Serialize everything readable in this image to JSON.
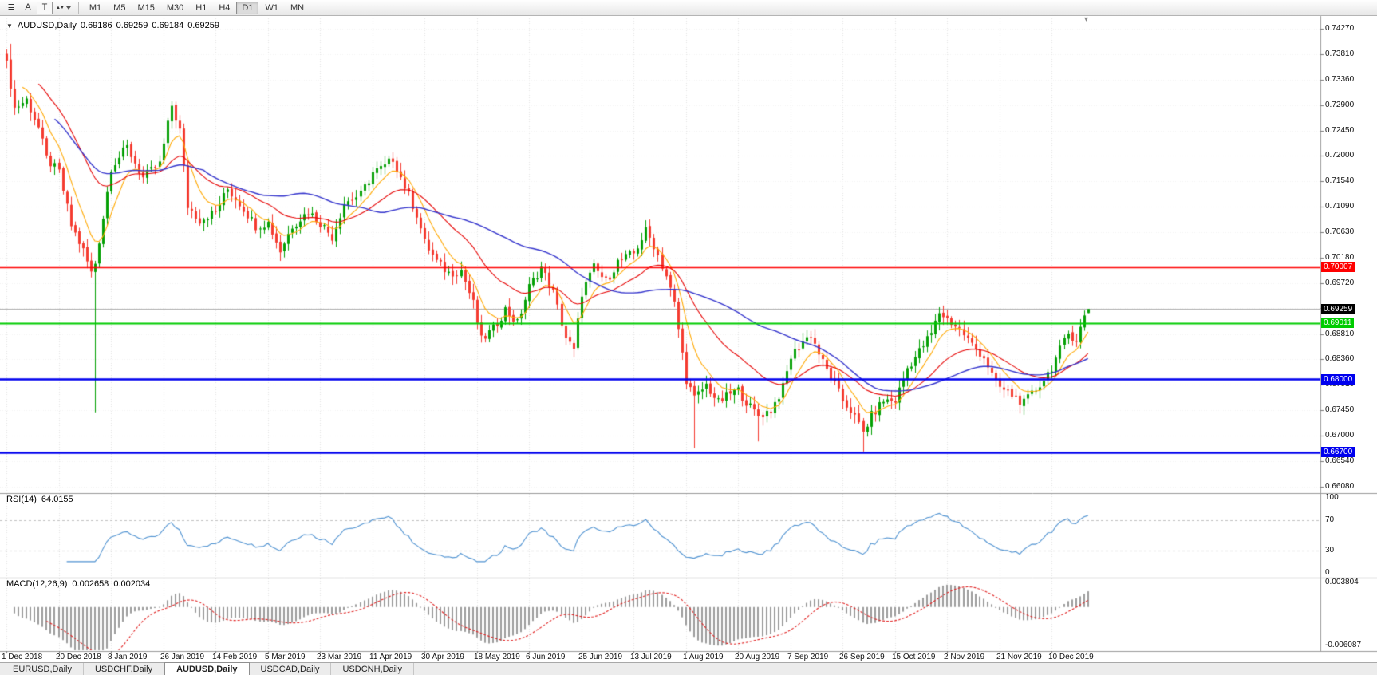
{
  "colors": {
    "bull": "#05A005",
    "bear": "#F43B30",
    "ma_fast_orange": "#FFA800",
    "ma_mid_red": "#E60000",
    "ma_slow_blue": "#3333CC",
    "rsi_line": "#4F92D1",
    "macd_hist": "#9C9C9C",
    "macd_signal": "#E02020",
    "hline_red": "#FF0000",
    "hline_green": "#00CC00",
    "hline_blue": "#0000EE",
    "bid_line": "#ACACAC",
    "bid_label_bg": "#000000",
    "grid_v": "#E3E3E3",
    "grid_h": "#F2F2F2",
    "rsi_levels_line": "#C0C0C0",
    "separator": "#9A9A9A"
  },
  "toolbar": {
    "tools": [
      {
        "name": "cursor-lines-icon",
        "glyph": "≣",
        "framed": false,
        "dropdown": false
      },
      {
        "name": "text-label-tool-icon",
        "glyph": "A",
        "framed": false,
        "dropdown": false
      },
      {
        "name": "text-box-tool-icon",
        "glyph": "T",
        "framed": true,
        "dropdown": false
      },
      {
        "name": "arrow-objects-dropdown-icon",
        "glyph": "▲▼",
        "framed": false,
        "dropdown": true
      }
    ],
    "timeframes": [
      "M1",
      "M5",
      "M15",
      "M30",
      "H1",
      "H4",
      "D1",
      "W1",
      "MN"
    ],
    "active_timeframe": "D1"
  },
  "chart": {
    "header": {
      "dropdown_icon": "▼",
      "symbol": "AUDUSD,Daily",
      "open": "0.69186",
      "high": "0.69259",
      "low": "0.69184",
      "close": "0.69259"
    },
    "shift_marker_icon": "▾",
    "scale": {
      "top": 0.7427,
      "bottom": 0.6608
    },
    "price_axis_labels": [
      "0.74270",
      "0.73810",
      "0.73360",
      "0.72900",
      "0.72450",
      "0.72000",
      "0.71540",
      "0.71090",
      "0.70630",
      "0.70180",
      "0.69720",
      "0.69270",
      "0.68810",
      "0.68360",
      "0.67910",
      "0.67450",
      "0.67000",
      "0.66540",
      "0.66080"
    ],
    "price_markers": [
      {
        "text": "0.70007",
        "price": 0.70007,
        "bg": "#FF0000"
      },
      {
        "text": "0.69259",
        "price": 0.69259,
        "bg": "#000000"
      },
      {
        "text": "0.69011",
        "price": 0.69011,
        "bg": "#00CC00"
      },
      {
        "text": "0.68000",
        "price": 0.68,
        "bg": "#0000EE"
      },
      {
        "text": "0.66700",
        "price": 0.667,
        "bg": "#0000EE"
      }
    ],
    "hlines": [
      {
        "price": 0.70007,
        "color": "#FF0000",
        "width": 1.4
      },
      {
        "price": 0.69011,
        "color": "#00CC00",
        "width": 2
      },
      {
        "price": 0.68,
        "color": "#0000EE",
        "width": 2.4
      },
      {
        "price": 0.667,
        "color": "#0000EE",
        "width": 2.4
      }
    ],
    "bid": {
      "price": 0.69259
    },
    "dates": [
      "1 Dec 2018",
      "20 Dec 2018",
      "8 Jan 2019",
      "26 Jan 2019",
      "14 Feb 2019",
      "5 Mar 2019",
      "23 Mar 2019",
      "11 Apr 2019",
      "30 Apr 2019",
      "18 May 2019",
      "6 Jun 2019",
      "25 Jun 2019",
      "13 Jul 2019",
      "1 Aug 2019",
      "20 Aug 2019",
      "7 Sep 2019",
      "26 Sep 2019",
      "15 Oct 2019",
      "2 Nov 2019",
      "21 Nov 2019",
      "10 Dec 2019"
    ],
    "candles_per_tick": 13
  },
  "chart_data": {
    "type": "candlestick",
    "symbol": "AUDUSD",
    "timeframe": "Daily",
    "title": "AUDUSD,Daily",
    "y_range": [
      0.6608,
      0.7427
    ],
    "x_labels": [
      "1 Dec 2018",
      "20 Dec 2018",
      "8 Jan 2019",
      "26 Jan 2019",
      "14 Feb 2019",
      "5 Mar 2019",
      "23 Mar 2019",
      "11 Apr 2019",
      "30 Apr 2019",
      "18 May 2019",
      "6 Jun 2019",
      "25 Jun 2019",
      "13 Jul 2019",
      "1 Aug 2019",
      "20 Aug 2019",
      "7 Sep 2019",
      "26 Sep 2019",
      "15 Oct 2019",
      "2 Nov 2019",
      "21 Nov 2019",
      "10 Dec 2019"
    ],
    "n_candles": 270,
    "close_anchors": [
      [
        0,
        0.737
      ],
      [
        2,
        0.7285
      ],
      [
        5,
        0.73
      ],
      [
        8,
        0.725
      ],
      [
        10,
        0.7195
      ],
      [
        13,
        0.717
      ],
      [
        16,
        0.7075
      ],
      [
        19,
        0.703
      ],
      [
        21,
        0.699
      ],
      [
        22,
        0.7008
      ],
      [
        24,
        0.709
      ],
      [
        26,
        0.718
      ],
      [
        30,
        0.7215
      ],
      [
        34,
        0.716
      ],
      [
        38,
        0.7185
      ],
      [
        41,
        0.729
      ],
      [
        43,
        0.7245
      ],
      [
        45,
        0.711
      ],
      [
        48,
        0.7085
      ],
      [
        52,
        0.71
      ],
      [
        55,
        0.714
      ],
      [
        58,
        0.7115
      ],
      [
        62,
        0.7075
      ],
      [
        65,
        0.708
      ],
      [
        68,
        0.703
      ],
      [
        71,
        0.7075
      ],
      [
        75,
        0.71
      ],
      [
        78,
        0.708
      ],
      [
        81,
        0.7055
      ],
      [
        84,
        0.7115
      ],
      [
        88,
        0.713
      ],
      [
        91,
        0.717
      ],
      [
        94,
        0.718
      ],
      [
        96,
        0.7195
      ],
      [
        99,
        0.7145
      ],
      [
        102,
        0.7095
      ],
      [
        104,
        0.7045
      ],
      [
        107,
        0.701
      ],
      [
        110,
        0.699
      ],
      [
        113,
        0.6995
      ],
      [
        116,
        0.6935
      ],
      [
        118,
        0.687
      ],
      [
        121,
        0.689
      ],
      [
        124,
        0.6925
      ],
      [
        127,
        0.69
      ],
      [
        130,
        0.6965
      ],
      [
        133,
        0.7
      ],
      [
        136,
        0.6955
      ],
      [
        139,
        0.6875
      ],
      [
        141,
        0.685
      ],
      [
        143,
        0.6955
      ],
      [
        146,
        0.7
      ],
      [
        149,
        0.6975
      ],
      [
        152,
        0.701
      ],
      [
        156,
        0.7025
      ],
      [
        159,
        0.7065
      ],
      [
        161,
        0.704
      ],
      [
        164,
        0.6985
      ],
      [
        166,
        0.6935
      ],
      [
        169,
        0.68
      ],
      [
        171,
        0.6765
      ],
      [
        174,
        0.679
      ],
      [
        177,
        0.6758
      ],
      [
        180,
        0.6775
      ],
      [
        182,
        0.678
      ],
      [
        185,
        0.675
      ],
      [
        187,
        0.6735
      ],
      [
        190,
        0.6745
      ],
      [
        193,
        0.6785
      ],
      [
        195,
        0.684
      ],
      [
        198,
        0.6868
      ],
      [
        200,
        0.688
      ],
      [
        203,
        0.683
      ],
      [
        206,
        0.679
      ],
      [
        208,
        0.6762
      ],
      [
        210,
        0.6745
      ],
      [
        213,
        0.6705
      ],
      [
        215,
        0.6735
      ],
      [
        218,
        0.6762
      ],
      [
        221,
        0.6762
      ],
      [
        224,
        0.682
      ],
      [
        227,
        0.685
      ],
      [
        230,
        0.6882
      ],
      [
        232,
        0.692
      ],
      [
        234,
        0.6908
      ],
      [
        237,
        0.689
      ],
      [
        240,
        0.6862
      ],
      [
        243,
        0.684
      ],
      [
        246,
        0.6792
      ],
      [
        248,
        0.678
      ],
      [
        251,
        0.6768
      ],
      [
        253,
        0.6757
      ],
      [
        256,
        0.6782
      ],
      [
        258,
        0.68
      ],
      [
        260,
        0.6822
      ],
      [
        262,
        0.6852
      ],
      [
        264,
        0.6882
      ],
      [
        266,
        0.6872
      ],
      [
        268,
        0.6912
      ],
      [
        269,
        0.69259
      ]
    ],
    "wick_lows": {
      "22": 0.6741,
      "171": 0.6677,
      "187": 0.6689,
      "213": 0.6671
    },
    "wick_highs": {
      "1": 0.74,
      "41": 0.7295,
      "96": 0.7206,
      "159": 0.7082
    },
    "last_candle": {
      "open": 0.69186,
      "high": 0.69259,
      "low": 0.69184,
      "close": 0.69259
    },
    "moving_averages": [
      {
        "type": "ema",
        "period": 8,
        "color": "#FFA800"
      },
      {
        "type": "ema",
        "period": 25,
        "color": "#E60000"
      },
      {
        "type": "sma",
        "period": 50,
        "color": "#3333CC"
      }
    ],
    "horizontal_levels": [
      0.70007,
      0.69011,
      0.68,
      0.667
    ],
    "current_bid": 0.69259
  },
  "rsi": {
    "name": "RSI(14)",
    "value": "64.0155",
    "period": 14,
    "levels": [
      100,
      70,
      30,
      0
    ],
    "dashed_levels": [
      70,
      30
    ]
  },
  "macd": {
    "name": "MACD(12,26,9)",
    "value_main": "0.002658",
    "value_signal": "0.002034",
    "axis_top": "0.003804",
    "axis_bottom": "-0.006087"
  },
  "tabs": {
    "items": [
      {
        "label": "EURUSD,Daily",
        "active": false
      },
      {
        "label": "USDCHF,Daily",
        "active": false
      },
      {
        "label": "AUDUSD,Daily",
        "active": true
      },
      {
        "label": "USDCAD,Daily",
        "active": false
      },
      {
        "label": "USDCNH,Daily",
        "active": false
      }
    ]
  }
}
